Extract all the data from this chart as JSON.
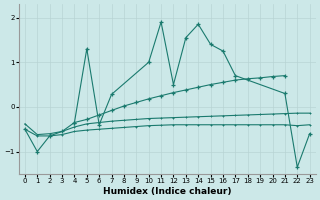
{
  "series_jagged": {
    "x": [
      0,
      1,
      2,
      3,
      4,
      5,
      6,
      7,
      10,
      11,
      12,
      13,
      14,
      15,
      16,
      17,
      21,
      22,
      23
    ],
    "y": [
      -0.5,
      -1.0,
      -0.65,
      -0.55,
      -0.35,
      1.3,
      -0.4,
      0.28,
      1.0,
      1.9,
      0.5,
      1.55,
      1.85,
      1.4,
      1.25,
      0.7,
      0.3,
      -1.35,
      -0.6
    ]
  },
  "series_rising": {
    "x": [
      4,
      5,
      6,
      7,
      8,
      9,
      10,
      11,
      12,
      13,
      14,
      15,
      16,
      17,
      18,
      19,
      20,
      21
    ],
    "y": [
      -0.35,
      -0.28,
      -0.18,
      -0.08,
      0.02,
      0.1,
      0.18,
      0.25,
      0.32,
      0.38,
      0.44,
      0.5,
      0.55,
      0.6,
      0.63,
      0.65,
      0.68,
      0.7
    ]
  },
  "series_flat_upper": {
    "x": [
      0,
      1,
      2,
      3,
      4,
      5,
      6,
      7,
      8,
      9,
      10,
      11,
      12,
      13,
      14,
      15,
      16,
      17,
      18,
      19,
      20,
      21,
      22,
      23
    ],
    "y": [
      -0.38,
      -0.62,
      -0.6,
      -0.55,
      -0.45,
      -0.38,
      -0.35,
      -0.32,
      -0.3,
      -0.28,
      -0.26,
      -0.25,
      -0.24,
      -0.23,
      -0.22,
      -0.21,
      -0.2,
      -0.19,
      -0.18,
      -0.17,
      -0.16,
      -0.15,
      -0.14,
      -0.14
    ]
  },
  "series_flat_lower": {
    "x": [
      0,
      1,
      2,
      3,
      4,
      5,
      6,
      7,
      8,
      9,
      10,
      11,
      12,
      13,
      14,
      15,
      16,
      17,
      18,
      19,
      20,
      21,
      22,
      23
    ],
    "y": [
      -0.5,
      -0.65,
      -0.65,
      -0.62,
      -0.55,
      -0.52,
      -0.5,
      -0.48,
      -0.46,
      -0.44,
      -0.42,
      -0.41,
      -0.4,
      -0.4,
      -0.4,
      -0.4,
      -0.4,
      -0.4,
      -0.4,
      -0.4,
      -0.4,
      -0.4,
      -0.42,
      -0.4
    ]
  },
  "color": "#1a7a6e",
  "bgcolor": "#cce8e8",
  "grid_color": "#b8d4d4",
  "xlabel": "Humidex (Indice chaleur)",
  "ylim": [
    -1.5,
    2.3
  ],
  "yticks": [
    -1,
    0,
    1,
    2
  ],
  "xticks": [
    0,
    1,
    2,
    3,
    4,
    5,
    6,
    7,
    8,
    9,
    10,
    11,
    12,
    13,
    14,
    15,
    16,
    17,
    18,
    19,
    20,
    21,
    22,
    23
  ]
}
